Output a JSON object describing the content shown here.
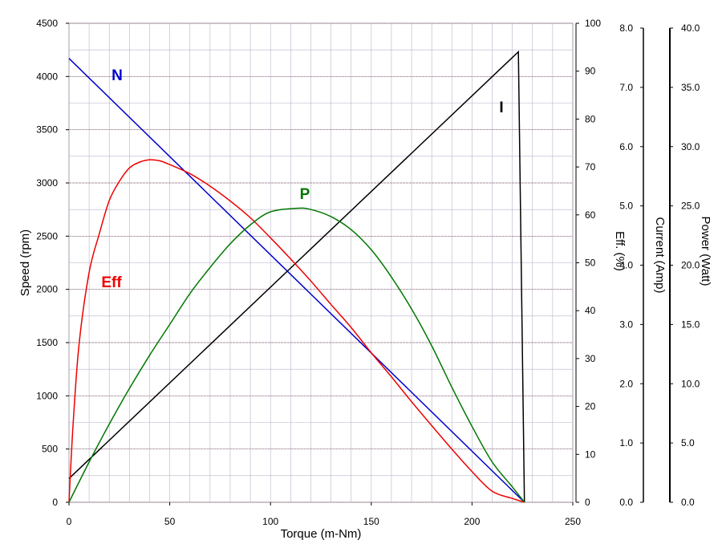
{
  "chart_data": {
    "type": "line",
    "xlabel": "Torque (m-Nm)",
    "xlim": [
      0,
      250
    ],
    "x_ticks": [
      "0",
      "50",
      "100",
      "150",
      "200",
      "250"
    ],
    "axes": {
      "speed": {
        "label": "Speed (rpm)",
        "range": [
          0,
          4500
        ],
        "ticks": [
          "0",
          "500",
          "1000",
          "1500",
          "2000",
          "2500",
          "3000",
          "3500",
          "4000",
          "4500"
        ],
        "color": "#000000"
      },
      "eff": {
        "label": "Eff. (%)",
        "range": [
          0,
          100
        ],
        "ticks": [
          "0",
          "10",
          "20",
          "30",
          "40",
          "50",
          "60",
          "70",
          "80",
          "90",
          "100"
        ],
        "color": "#ff0000"
      },
      "current": {
        "label": "Current (Amp)",
        "range": [
          0,
          8
        ],
        "ticks": [
          "0.0",
          "1.0",
          "2.0",
          "3.0",
          "4.0",
          "5.0",
          "6.0",
          "7.0",
          "8.0"
        ],
        "color": "#000000"
      },
      "power": {
        "label": "Power (Watt)",
        "range": [
          0,
          40
        ],
        "ticks": [
          "0.0",
          "5.0",
          "10.0",
          "15.0",
          "20.0",
          "25.0",
          "30.0",
          "35.0",
          "40.0"
        ],
        "color": "#008000"
      }
    },
    "grid": true,
    "series": [
      {
        "name": "N",
        "axis": "speed",
        "color": "#0000cc",
        "x": [
          0,
          226
        ],
        "y": [
          4170,
          0
        ]
      },
      {
        "name": "I",
        "axis": "current",
        "color": "#000000",
        "x": [
          0,
          223,
          226
        ],
        "y": [
          0.4,
          7.6,
          0
        ]
      },
      {
        "name": "Eff",
        "axis": "eff",
        "color": "#ee0000",
        "x": [
          0,
          2,
          5,
          10,
          15,
          20,
          25,
          30,
          35,
          40,
          45,
          50,
          60,
          70,
          80,
          90,
          100,
          110,
          120,
          130,
          140,
          150,
          160,
          170,
          180,
          190,
          200,
          210,
          220,
          226
        ],
        "y": [
          0,
          16,
          33,
          48,
          56,
          63,
          67,
          69.8,
          71,
          71.5,
          71.3,
          70.5,
          68.6,
          66,
          62.9,
          59.4,
          55.2,
          50.8,
          46.2,
          41.3,
          36.5,
          31.2,
          26.2,
          21,
          16,
          11.1,
          6.4,
          2.3,
          0.8,
          0
        ]
      },
      {
        "name": "P",
        "axis": "power",
        "color": "#007700",
        "x": [
          0,
          10,
          20,
          30,
          40,
          50,
          60,
          70,
          80,
          90,
          100,
          113,
          120,
          130,
          140,
          150,
          160,
          170,
          180,
          190,
          200,
          210,
          220,
          226
        ],
        "y": [
          0,
          3.4,
          6.6,
          9.6,
          12.4,
          15,
          17.6,
          19.8,
          21.8,
          23.4,
          24.5,
          24.8,
          24.7,
          24.1,
          23,
          21.3,
          19,
          16.3,
          13.2,
          9.7,
          6.4,
          3.4,
          1.3,
          0
        ]
      }
    ],
    "annotations": [
      {
        "text": "N",
        "color": "#0000cc"
      },
      {
        "text": "Eff",
        "color": "#ee0000"
      },
      {
        "text": "P",
        "color": "#007700"
      },
      {
        "text": "I",
        "color": "#000000"
      }
    ]
  }
}
